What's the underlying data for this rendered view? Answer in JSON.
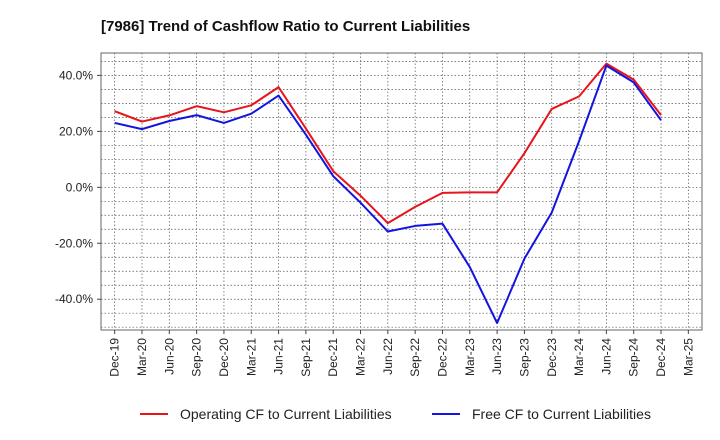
{
  "chart_data": {
    "type": "line",
    "title": "[7986]  Trend of Cashflow Ratio to Current Liabilities",
    "xlabel": "",
    "ylabel": "",
    "x": [
      "Dec-19",
      "Mar-20",
      "Jun-20",
      "Sep-20",
      "Dec-20",
      "Mar-21",
      "Jun-21",
      "Sep-21",
      "Dec-21",
      "Mar-22",
      "Jun-22",
      "Sep-22",
      "Dec-22",
      "Mar-23",
      "Jun-23",
      "Sep-23",
      "Dec-23",
      "Mar-24",
      "Jun-24",
      "Sep-24",
      "Dec-24",
      "Mar-25"
    ],
    "ylim": [
      -51,
      48
    ],
    "yticks": [
      40,
      20,
      0,
      -20,
      -40
    ],
    "ytick_labels": [
      "40.0%",
      "20.0%",
      "0.0%",
      "-20.0%",
      "-40.0%"
    ],
    "grid": true,
    "legend_position": "bottom",
    "series": [
      {
        "name": "Operating CF to Current Liabilities",
        "color": "#e8141c",
        "values": [
          27.2,
          23.5,
          25.7,
          29.0,
          26.8,
          29.3,
          35.8,
          21.0,
          5.8,
          -3.0,
          -12.8,
          -7.0,
          -2.0,
          -1.8,
          -1.8,
          12.2,
          28.0,
          32.5,
          44.2,
          38.5,
          25.8,
          null
        ]
      },
      {
        "name": "Free CF to Current Liabilities",
        "color": "#1414e0",
        "values": [
          23.0,
          20.8,
          23.7,
          25.8,
          23.0,
          26.3,
          32.8,
          18.8,
          4.0,
          -5.5,
          -15.8,
          -13.8,
          -13.0,
          -28.5,
          -48.5,
          -25.5,
          -9.0,
          16.5,
          43.5,
          37.5,
          24.0,
          null
        ]
      }
    ]
  }
}
